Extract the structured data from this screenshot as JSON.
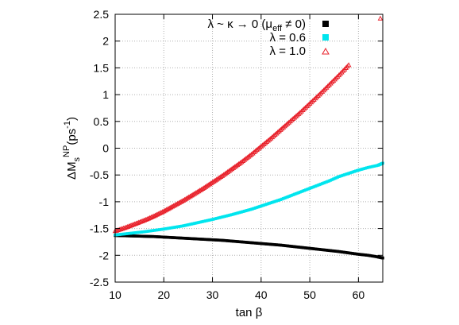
{
  "chart_data": {
    "type": "scatter",
    "title": "",
    "xlabel": "tan β",
    "ylabel": "ΔM_s^NP (ps^-1)",
    "ylabel_parts": {
      "main": "ΔM",
      "sub": "s",
      "sup": "NP",
      "unit": "(ps",
      "unit_sup": "-1",
      "unit_close": ")"
    },
    "xlim": [
      10,
      65
    ],
    "ylim": [
      -2.5,
      2.5
    ],
    "x_ticks": [
      10,
      20,
      30,
      40,
      50,
      60
    ],
    "y_ticks": [
      -2.5,
      -2,
      -1.5,
      -1,
      -0.5,
      0,
      0.5,
      1,
      1.5,
      2,
      2.5
    ],
    "x_tick_labels": [
      "10",
      "20",
      "30",
      "40",
      "50",
      "60"
    ],
    "y_tick_labels": [
      "-2.5",
      "-2",
      "-1.5",
      "-1",
      "-0.5",
      "0",
      "0.5",
      "1",
      "1.5",
      "2",
      "2.5"
    ],
    "grid": true,
    "legend_position": "top-right",
    "series": [
      {
        "name": "λ ~ κ → 0 (μ_eff ≠ 0)",
        "legend_parts": {
          "pre": "λ ~ κ → 0 (μ",
          "sub": "eff",
          "post": " ≠ 0)"
        },
        "marker": "filled-square",
        "color": "#000000",
        "x": [
          10,
          12,
          14,
          16,
          18,
          20,
          22,
          24,
          26,
          28,
          30,
          32,
          34,
          36,
          38,
          40,
          42,
          44,
          46,
          48,
          50,
          52,
          54,
          56,
          58,
          60,
          62,
          64,
          65
        ],
        "y": [
          -1.63,
          -1.635,
          -1.64,
          -1.645,
          -1.65,
          -1.66,
          -1.67,
          -1.68,
          -1.69,
          -1.7,
          -1.71,
          -1.72,
          -1.735,
          -1.75,
          -1.765,
          -1.78,
          -1.795,
          -1.81,
          -1.83,
          -1.85,
          -1.87,
          -1.89,
          -1.91,
          -1.93,
          -1.955,
          -1.98,
          -2.0,
          -2.03,
          -2.05
        ]
      },
      {
        "name": "λ = 0.6",
        "legend_parts": {
          "pre": "λ = 0.6",
          "sub": "",
          "post": ""
        },
        "marker": "filled-square",
        "color": "#00e5ee",
        "x": [
          10,
          12,
          14,
          16,
          18,
          20,
          22,
          24,
          26,
          28,
          30,
          32,
          34,
          36,
          38,
          40,
          42,
          44,
          46,
          48,
          50,
          52,
          54,
          56,
          58,
          60,
          62,
          64,
          65
        ],
        "y": [
          -1.62,
          -1.6,
          -1.58,
          -1.56,
          -1.535,
          -1.51,
          -1.48,
          -1.45,
          -1.41,
          -1.37,
          -1.33,
          -1.285,
          -1.24,
          -1.19,
          -1.14,
          -1.08,
          -1.02,
          -0.96,
          -0.89,
          -0.82,
          -0.75,
          -0.68,
          -0.61,
          -0.53,
          -0.47,
          -0.41,
          -0.36,
          -0.32,
          -0.28
        ]
      },
      {
        "name": "λ = 1.0",
        "legend_parts": {
          "pre": "λ = 1.0",
          "sub": "",
          "post": ""
        },
        "marker": "open-triangle",
        "color": "#e8202a",
        "x": [
          10,
          12,
          14,
          16,
          18,
          20,
          22,
          24,
          26,
          28,
          30,
          32,
          34,
          36,
          38,
          40,
          42,
          44,
          46,
          48,
          50,
          52,
          54,
          56,
          58
        ],
        "y": [
          -1.55,
          -1.49,
          -1.42,
          -1.35,
          -1.27,
          -1.18,
          -1.08,
          -0.98,
          -0.87,
          -0.76,
          -0.64,
          -0.52,
          -0.39,
          -0.26,
          -0.12,
          0.03,
          0.18,
          0.34,
          0.5,
          0.66,
          0.83,
          1.0,
          1.18,
          1.36,
          1.55
        ]
      }
    ],
    "isolated_points": [
      {
        "series": "λ = 1.0",
        "x": 64.5,
        "y": 2.42
      }
    ]
  }
}
